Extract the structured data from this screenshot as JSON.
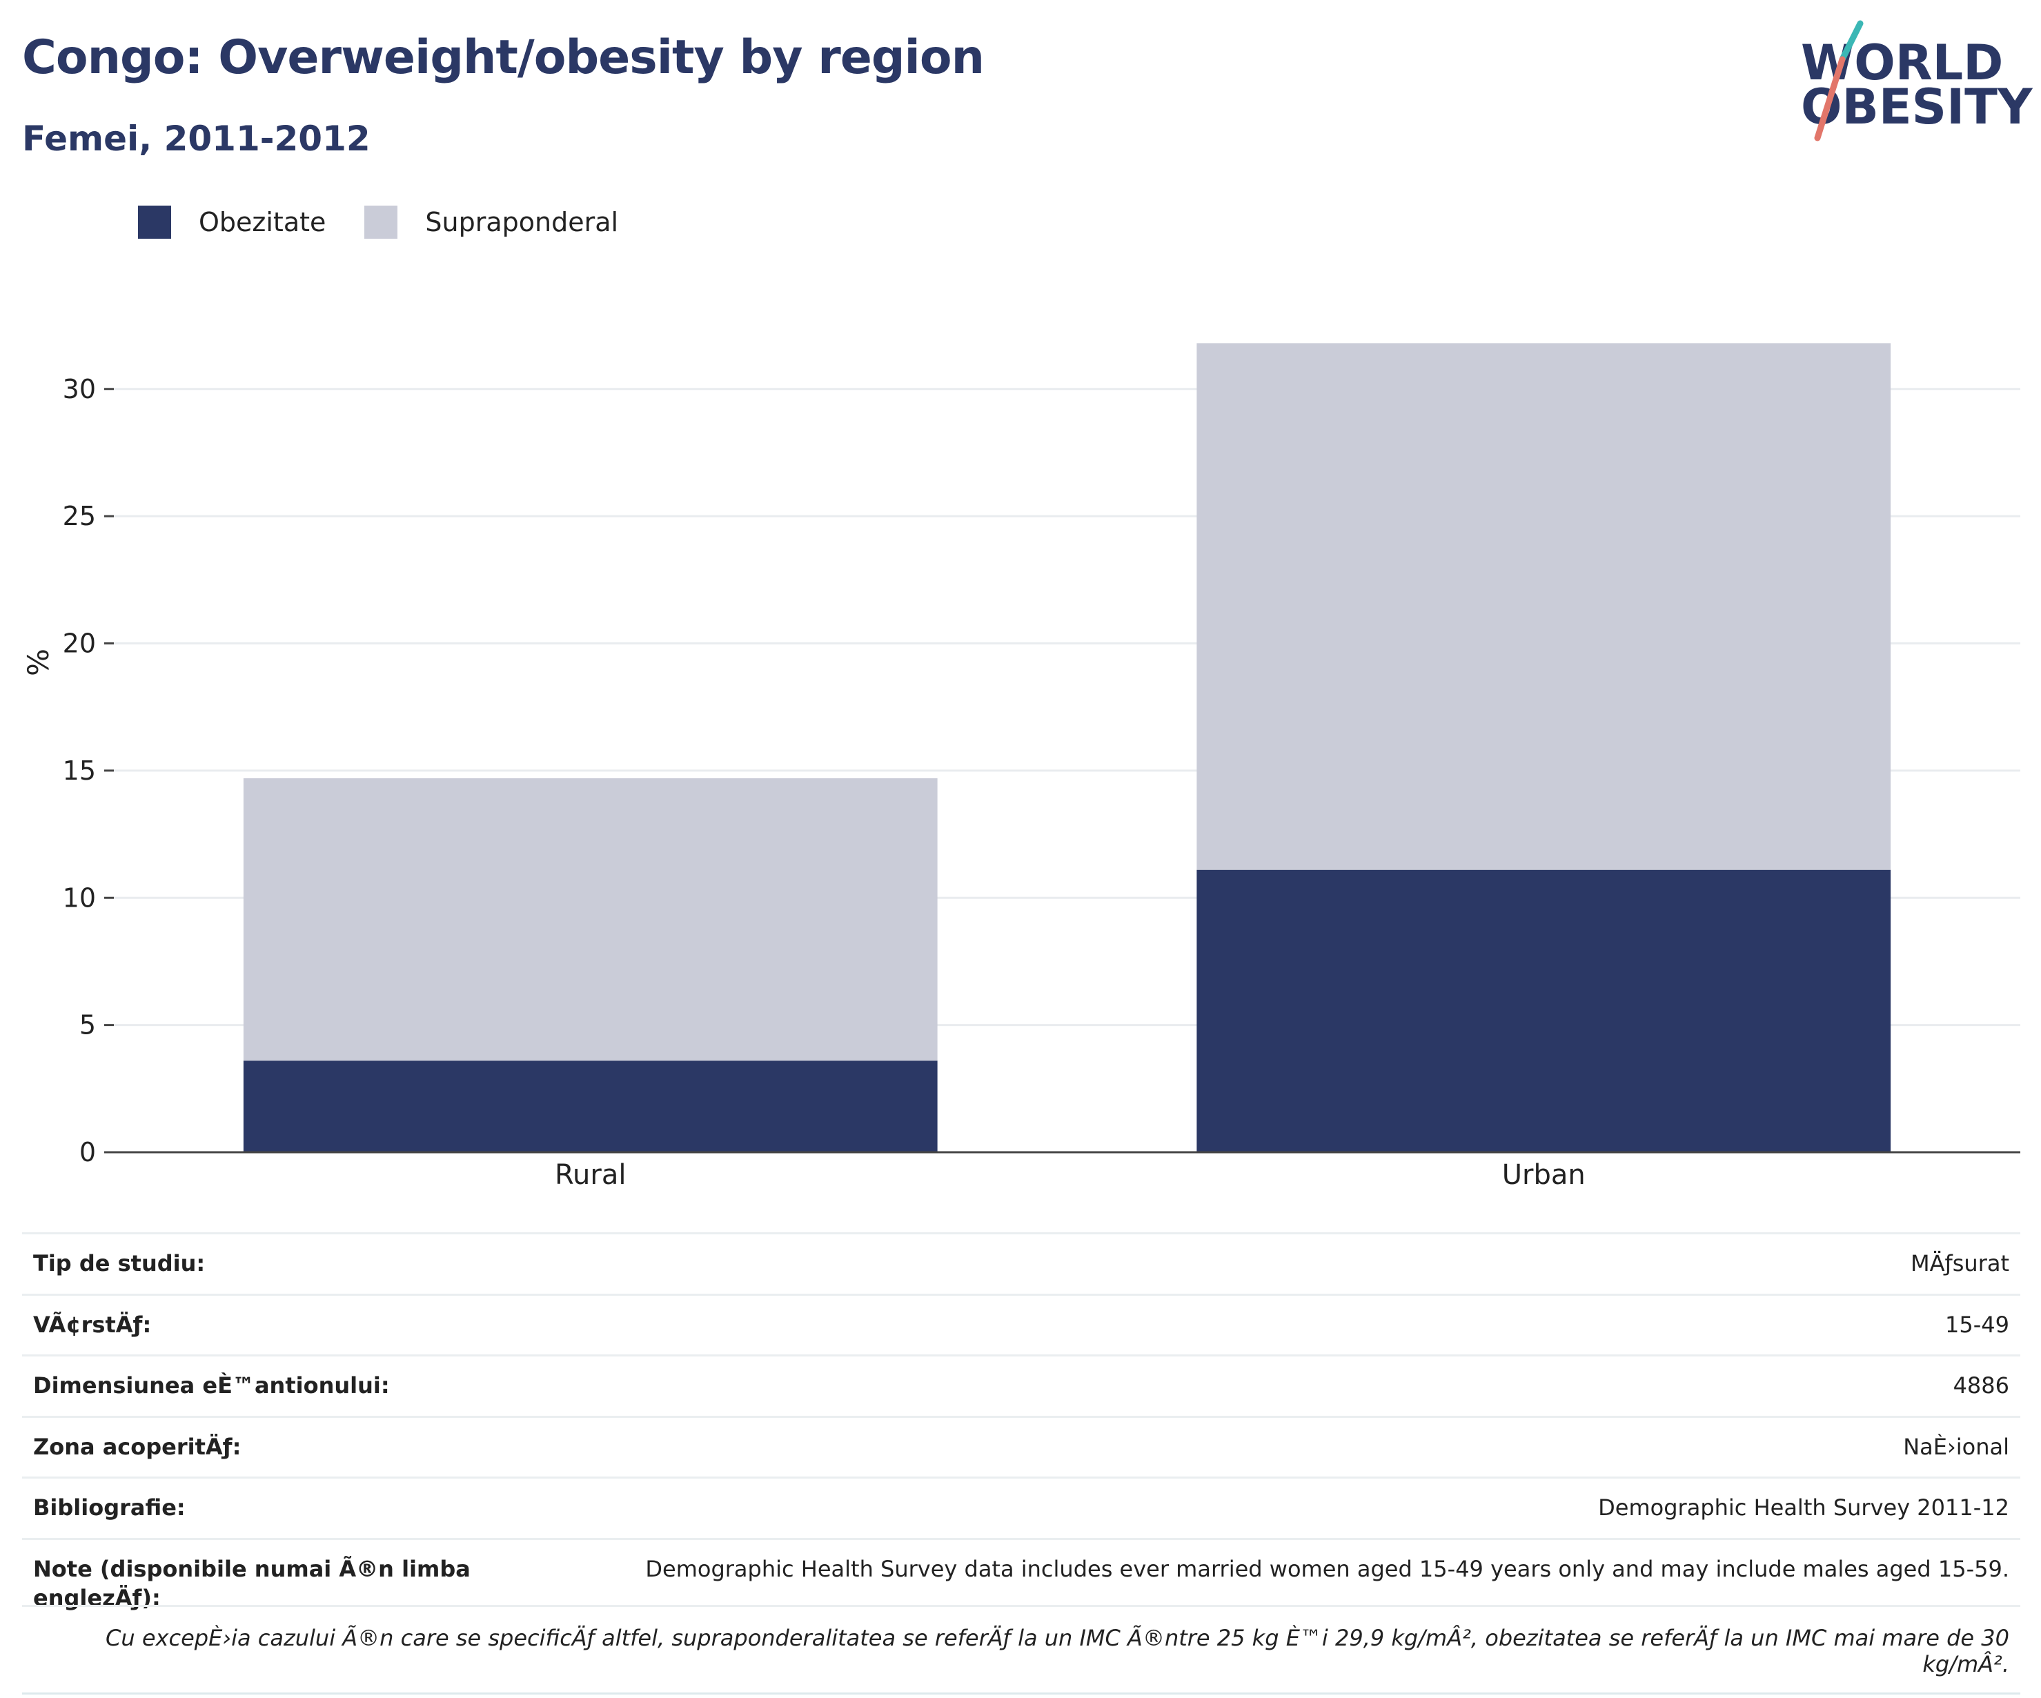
{
  "title": "Congo: Overweight/obesity by region",
  "subtitle": "Femei, 2011-2012",
  "logo": {
    "line1": "WORLD",
    "line2": "OBESITY"
  },
  "legend": [
    {
      "label": "Obezitate",
      "color": "#2b3865"
    },
    {
      "label": "Supraponderal",
      "color": "#caccd8"
    }
  ],
  "chart_data": {
    "type": "bar",
    "stacked": true,
    "categories": [
      "Rural",
      "Urban"
    ],
    "series": [
      {
        "name": "Obezitate",
        "color": "#2b3865",
        "values": [
          3.6,
          11.1
        ]
      },
      {
        "name": "Supraponderal",
        "color": "#caccd8",
        "values": [
          11.1,
          20.7
        ]
      }
    ],
    "ylabel": "%",
    "xlabel": "",
    "ylim": [
      0,
      32
    ],
    "yticks": [
      0,
      5,
      10,
      15,
      20,
      25,
      30
    ],
    "grid": true,
    "legend_position": "top-left"
  },
  "info": [
    {
      "label": "Tip de studiu:",
      "value": "MÄƒsurat"
    },
    {
      "label": "VÃ¢rstÄƒ:",
      "value": "15-49"
    },
    {
      "label": "Dimensiunea eÈ™antionului:",
      "value": "4886"
    },
    {
      "label": "Zona acoperitÄƒ:",
      "value": "NaÈ›ional"
    },
    {
      "label": "Bibliografie:",
      "value": "Demographic Health Survey 2011-12"
    },
    {
      "label": "Note (disponibile numai Ã®n limba englezÄƒ):",
      "value": "Demographic Health Survey data includes ever married women aged 15-49 years only and may include males aged 15-59."
    }
  ],
  "footnote": "Cu excepÈ›ia cazului Ã®n care se specificÄƒ altfel, supraponderalitatea se referÄƒ la un IMC Ã®ntre 25 kg È™i 29,9 kg/mÂ², obezitatea se referÄƒ la un IMC mai mare de 30 kg/mÂ²."
}
